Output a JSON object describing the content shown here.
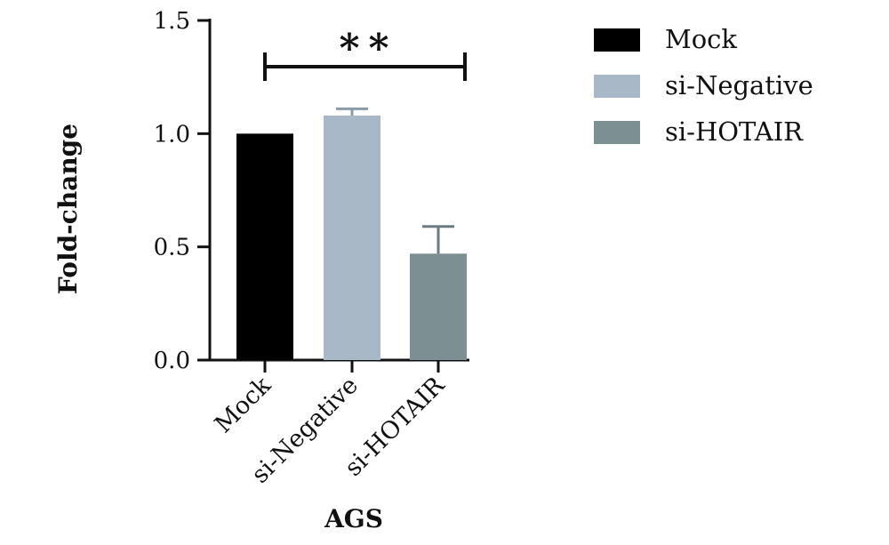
{
  "chart_data": {
    "type": "bar",
    "title": "",
    "xlabel": "AGS",
    "ylabel": "Fold-change",
    "ylim": [
      0,
      1.5
    ],
    "yticks": [
      0.0,
      0.5,
      1.0,
      1.5
    ],
    "ytick_labels": [
      "0.0",
      "0.5",
      "1.0",
      "1.5"
    ],
    "categories": [
      "Mock",
      "si-Negative",
      "si-HOTAIR"
    ],
    "values": [
      1.0,
      1.08,
      0.47
    ],
    "errors": [
      0.0,
      0.03,
      0.12
    ],
    "colors": [
      "#000000",
      "#a9b8c6",
      "#7c8f93"
    ],
    "legend": {
      "placement": "right",
      "entries": [
        "Mock",
        "si-Negative",
        "si-HOTAIR"
      ]
    },
    "significance": {
      "label": "**",
      "from": "Mock",
      "to": "si-HOTAIR"
    },
    "grid": false
  }
}
